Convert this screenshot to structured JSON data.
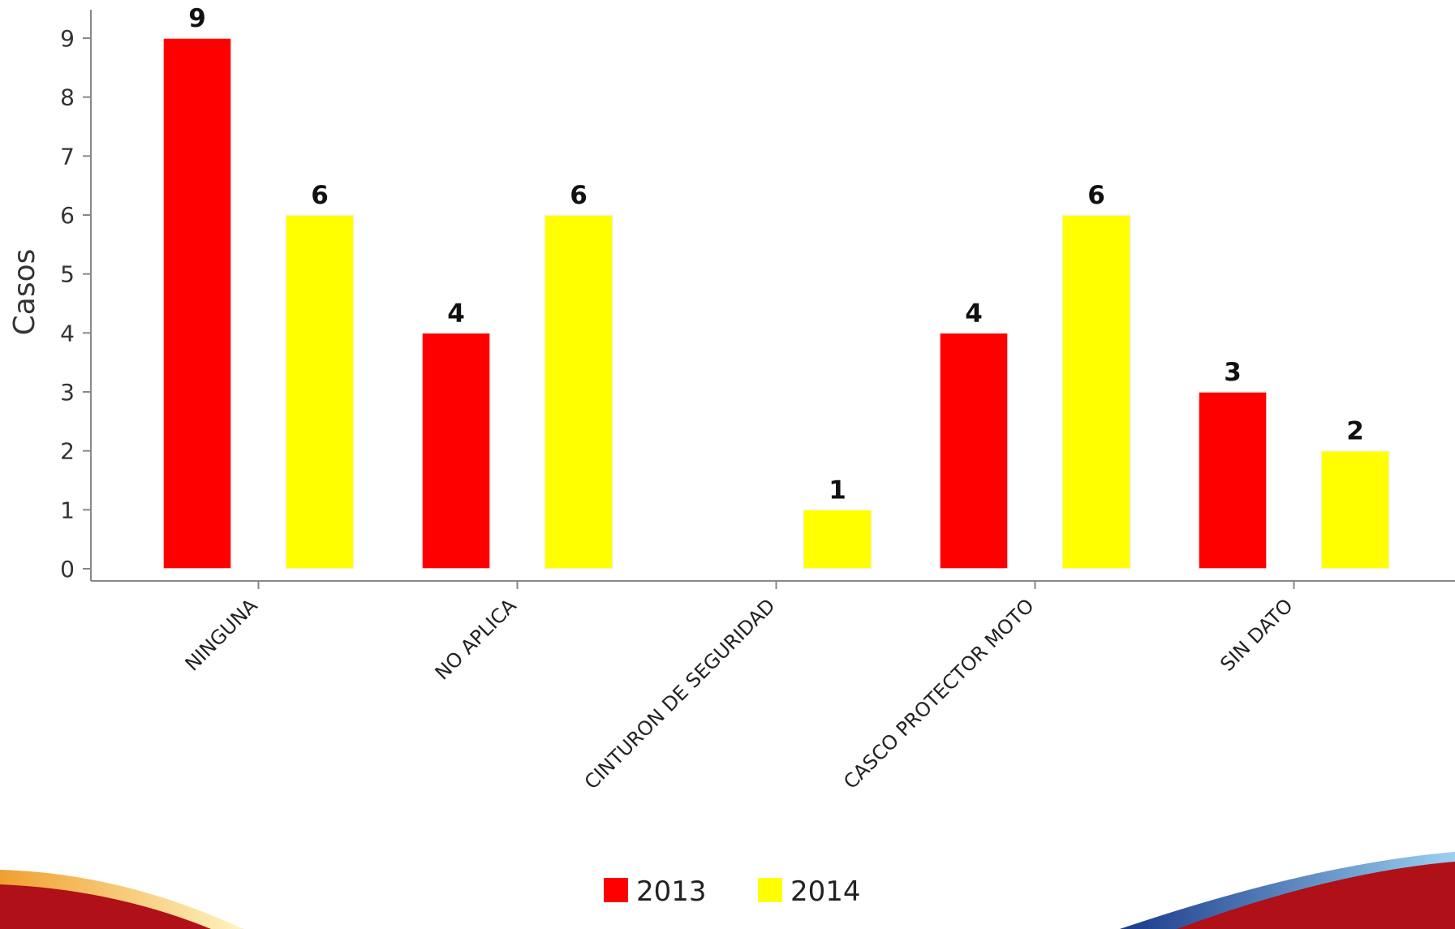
{
  "chart_data": {
    "type": "bar",
    "ylabel": "Casos",
    "xlabel": "",
    "ylim": [
      0,
      9
    ],
    "yticks": [
      0,
      1,
      2,
      3,
      4,
      5,
      6,
      7,
      8,
      9
    ],
    "grid": false,
    "legend_position": "bottom-center",
    "categories": [
      "NINGUNA",
      "NO APLICA",
      "CINTURON DE SEGURIDAD",
      "CASCO PROTECTOR MOTO",
      "SIN DATO"
    ],
    "series": [
      {
        "name": "2013",
        "color": "#ff0000",
        "values": [
          9,
          4,
          0,
          4,
          3
        ]
      },
      {
        "name": "2014",
        "color": "#ffff00",
        "values": [
          6,
          6,
          1,
          6,
          2
        ]
      }
    ]
  }
}
